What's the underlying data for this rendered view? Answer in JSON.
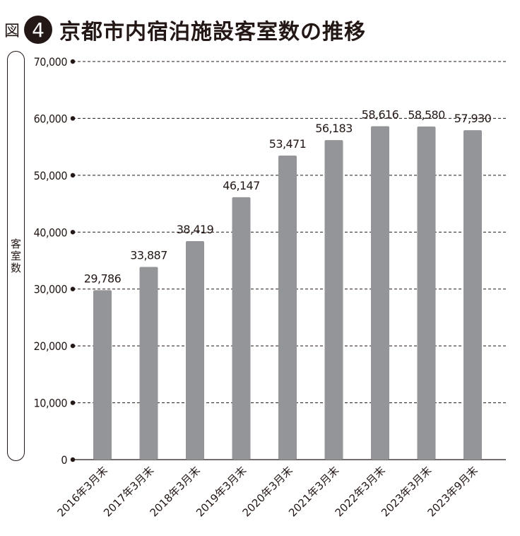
{
  "header": {
    "figure_prefix": "図",
    "figure_number": "4",
    "title": "京都市内宿泊施設客室数の推移"
  },
  "chart_data": {
    "type": "bar",
    "ylabel": "客室数",
    "ylim": [
      0,
      70000
    ],
    "yticks": [
      0,
      10000,
      20000,
      30000,
      40000,
      50000,
      60000,
      70000
    ],
    "ytick_labels": [
      "0",
      "10,000",
      "20,000",
      "30,000",
      "40,000",
      "50,000",
      "60,000",
      "70,000"
    ],
    "categories": [
      "2016年3月末",
      "2017年3月末",
      "2018年3月末",
      "2019年3月末",
      "2020年3月末",
      "2021年3月末",
      "2022年3月末",
      "2023年3月末",
      "2023年9月末"
    ],
    "values": [
      29786,
      33887,
      38419,
      46147,
      53471,
      56183,
      58616,
      58580,
      57930
    ],
    "value_labels": [
      "29,786",
      "33,887",
      "38,419",
      "46,147",
      "53,471",
      "56,183",
      "58,616",
      "58,580",
      "57,930"
    ],
    "grid": true,
    "bar_color": "#939598",
    "text_color": "#231815"
  }
}
